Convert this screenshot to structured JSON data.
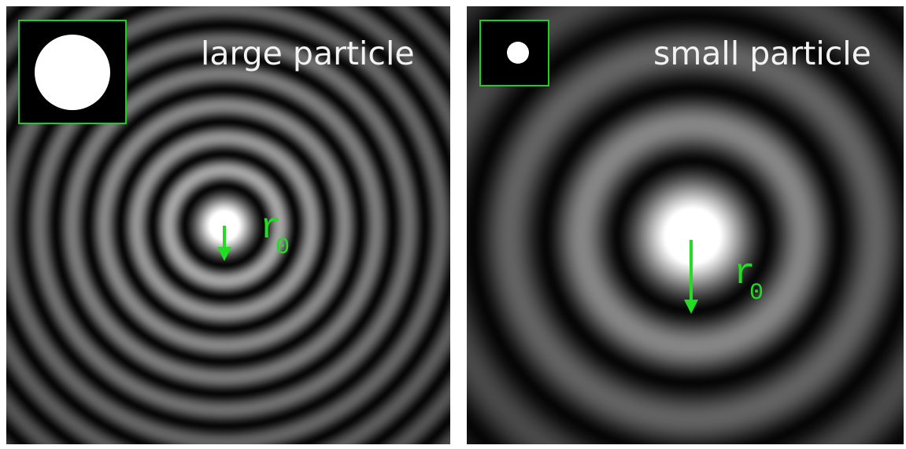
{
  "panels": [
    {
      "title": "large particle",
      "symbol": "r",
      "subscript": "0"
    },
    {
      "title": "small particle",
      "symbol": "r",
      "subscript": "0"
    }
  ]
}
